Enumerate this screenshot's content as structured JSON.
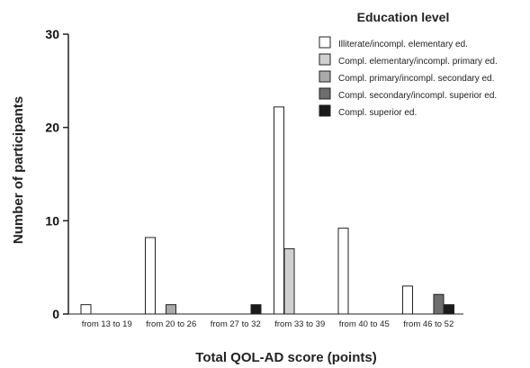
{
  "chart_data": {
    "type": "bar",
    "xlabel": "Total QOL-AD score (points)",
    "ylabel": "Number of participants",
    "ylim": [
      0,
      30
    ],
    "yticks": [
      0,
      10,
      20,
      30
    ],
    "categories": [
      "from 13 to 19",
      "from 20 to 26",
      "from 27 to 32",
      "from 33 to 39",
      "from 40 to 45",
      "from 46 to 52"
    ],
    "legend": {
      "title": "Education level",
      "position": "top-right"
    },
    "series": [
      {
        "name": "Illiterate/incompl. elementary ed.",
        "color": "#ffffff",
        "values": [
          1,
          8.2,
          0,
          22.2,
          9.2,
          3
        ]
      },
      {
        "name": "Compl. elementary/incompl. primary ed.",
        "color": "#d0d0d0",
        "values": [
          0,
          0,
          0,
          7,
          0,
          0
        ]
      },
      {
        "name": "Compl. primary/incompl. secondary ed.",
        "color": "#a9a9a9",
        "values": [
          0,
          1,
          0,
          0,
          0,
          0
        ]
      },
      {
        "name": "Compl. secondary/incompl. superior ed.",
        "color": "#6e6e6e",
        "values": [
          0,
          0,
          0,
          0,
          0,
          2.1
        ]
      },
      {
        "name": "Compl. superior ed.",
        "color": "#1a1a1a",
        "values": [
          0,
          0,
          1,
          0,
          0,
          1
        ]
      }
    ]
  }
}
